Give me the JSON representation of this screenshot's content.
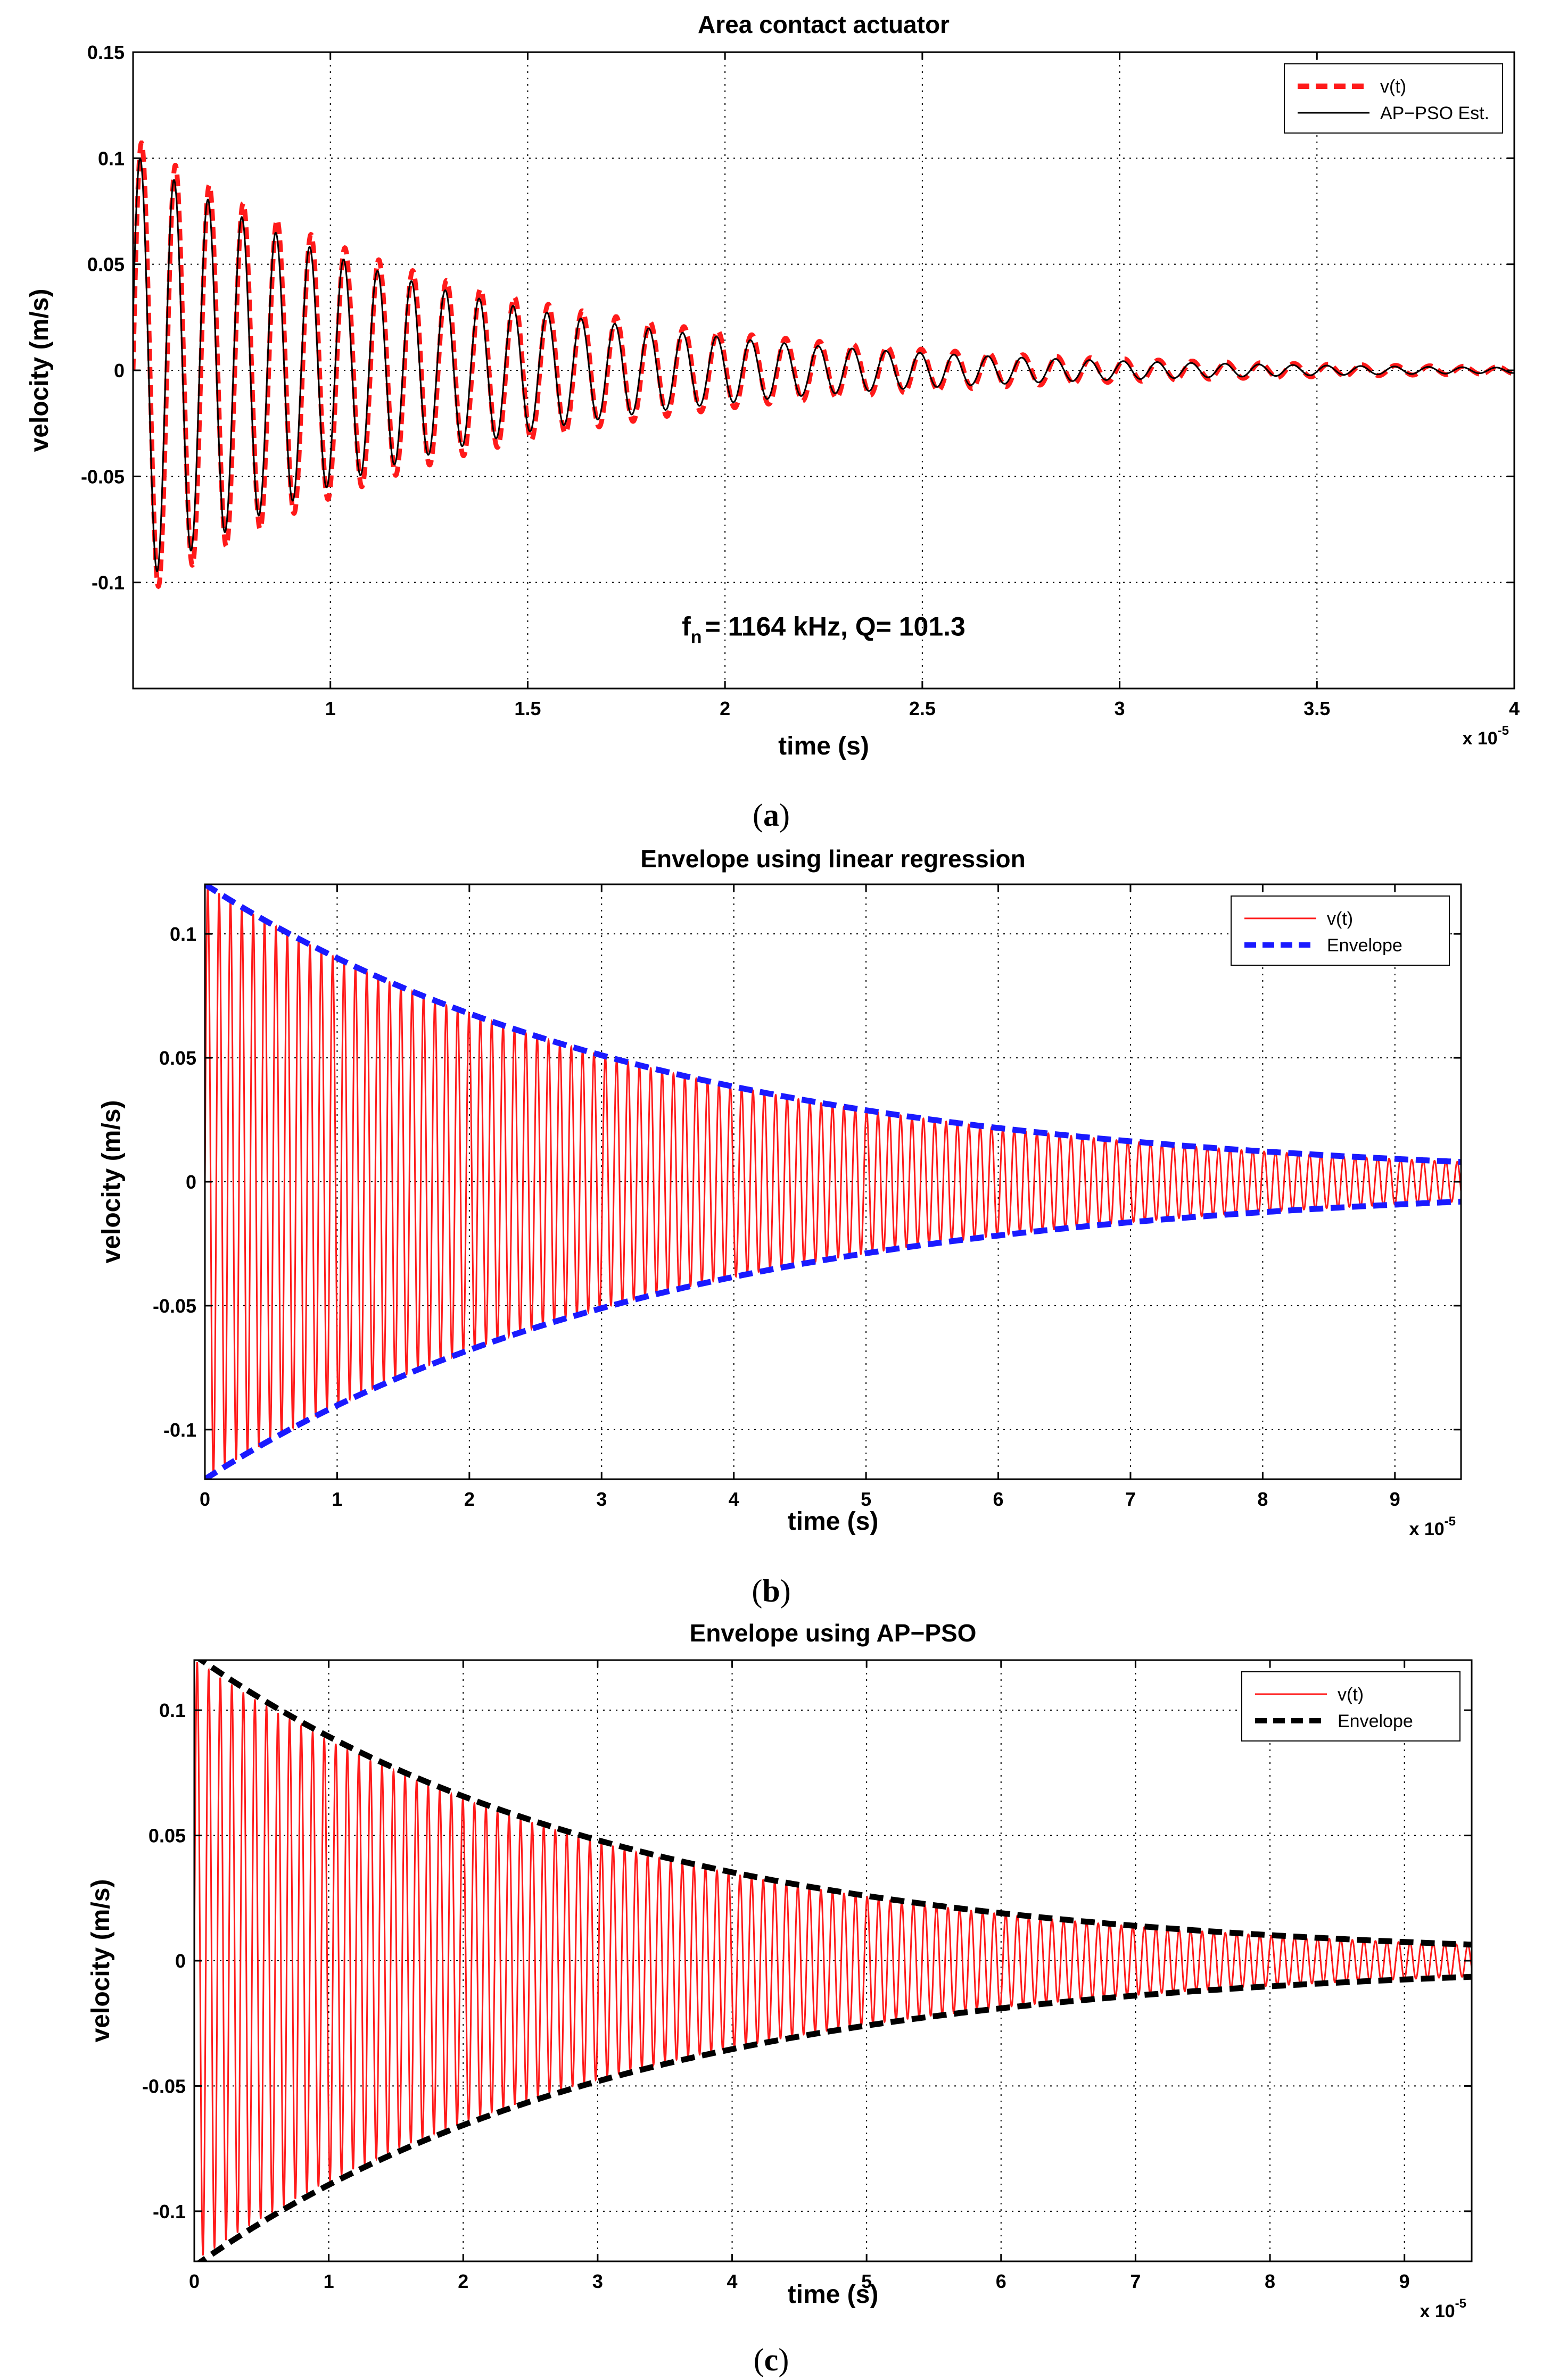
{
  "chart_data": [
    {
      "type": "line",
      "panel": "a",
      "title": "Area contact actuator",
      "xlabel": "time (s)",
      "ylabel": "velocity (m/s)",
      "x_multiplier": "x 10",
      "x_multiplier_exp": "-5",
      "xlim": [
        0.5,
        4
      ],
      "ylim": [
        -0.15,
        0.15
      ],
      "xticks": [
        1,
        1.5,
        2,
        2.5,
        3,
        3.5,
        4
      ],
      "xtick_labels": [
        "1",
        "1.5",
        "2",
        "2.5",
        "3",
        "3.5",
        "4"
      ],
      "yticks": [
        -0.1,
        -0.05,
        0,
        0.05,
        0.1,
        0.15
      ],
      "ytick_labels": [
        "-0.1",
        "-0.05",
        "0",
        "0.05",
        "0.1",
        "0.15"
      ],
      "grid": true,
      "legend_position": "top-right",
      "annotation": {
        "prefix": "f",
        "sub": "n",
        "text": "= 1164 kHz, Q= 101.3"
      },
      "caption": {
        "open": "(",
        "letter": "a",
        "close": ")"
      },
      "signal": {
        "freq_cycles_per_unit": 11.64,
        "amplitude": 0.11,
        "decay_per_unit": 1.2,
        "t0": 0.5
      },
      "series": [
        {
          "name": "v(t)",
          "style": "dashed",
          "color": "#ff1a1a",
          "kind": "measured"
        },
        {
          "name": "AP−PSO Est.",
          "style": "solid",
          "color": "#000000",
          "kind": "estimate"
        }
      ]
    },
    {
      "type": "line",
      "panel": "b",
      "title": "Envelope using linear regression",
      "xlabel": "time (s)",
      "ylabel": "velocity (m/s)",
      "x_multiplier": "x 10",
      "x_multiplier_exp": "-5",
      "xlim": [
        0,
        9.5
      ],
      "ylim": [
        -0.12,
        0.12
      ],
      "xticks": [
        0,
        1,
        2,
        3,
        4,
        5,
        6,
        7,
        8,
        9
      ],
      "xtick_labels": [
        "0",
        "1",
        "2",
        "3",
        "4",
        "5",
        "6",
        "7",
        "8",
        "9"
      ],
      "yticks": [
        -0.1,
        -0.05,
        0,
        0.05,
        0.1
      ],
      "ytick_labels": [
        "-0.1",
        "-0.05",
        "0",
        "0.05",
        "0.1"
      ],
      "grid": true,
      "legend_position": "top-right",
      "caption": {
        "open": "(",
        "letter": "b",
        "close": ")"
      },
      "signal": {
        "freq_cycles_per_unit": 11.64,
        "amplitude": 0.12,
        "decay_per_unit": 0.285,
        "t0": 0
      },
      "series": [
        {
          "name": "v(t)",
          "style": "solid",
          "color": "#ff1a1a",
          "kind": "signal"
        },
        {
          "name": "Envelope",
          "style": "dashed",
          "color": "#1a1aff",
          "kind": "envelope",
          "A": 0.12,
          "decay_per_unit": 0.285
        }
      ]
    },
    {
      "type": "line",
      "panel": "c",
      "title": "Envelope using AP−PSO",
      "xlabel": "time (s)",
      "ylabel": "velocity (m/s)",
      "x_multiplier": "x 10",
      "x_multiplier_exp": "-5",
      "xlim": [
        0,
        9.5
      ],
      "ylim": [
        -0.12,
        0.12
      ],
      "xticks": [
        0,
        1,
        2,
        3,
        4,
        5,
        6,
        7,
        8,
        9
      ],
      "xtick_labels": [
        "0",
        "1",
        "2",
        "3",
        "4",
        "5",
        "6",
        "7",
        "8",
        "9"
      ],
      "yticks": [
        -0.1,
        -0.05,
        0,
        0.05,
        0.1
      ],
      "ytick_labels": [
        "-0.1",
        "-0.05",
        "0",
        "0.05",
        "0.1"
      ],
      "grid": true,
      "legend_position": "top-right",
      "caption": {
        "open": "(",
        "letter": "c",
        "close": ")"
      },
      "signal": {
        "freq_cycles_per_unit": 11.64,
        "amplitude": 0.12,
        "decay_per_unit": 0.31,
        "t0": 0
      },
      "series": [
        {
          "name": "v(t)",
          "style": "solid",
          "color": "#ff1a1a",
          "kind": "signal"
        },
        {
          "name": "Envelope",
          "style": "dashed",
          "color": "#000000",
          "kind": "envelope",
          "A": 0.122,
          "decay_per_unit": 0.31
        }
      ]
    }
  ]
}
